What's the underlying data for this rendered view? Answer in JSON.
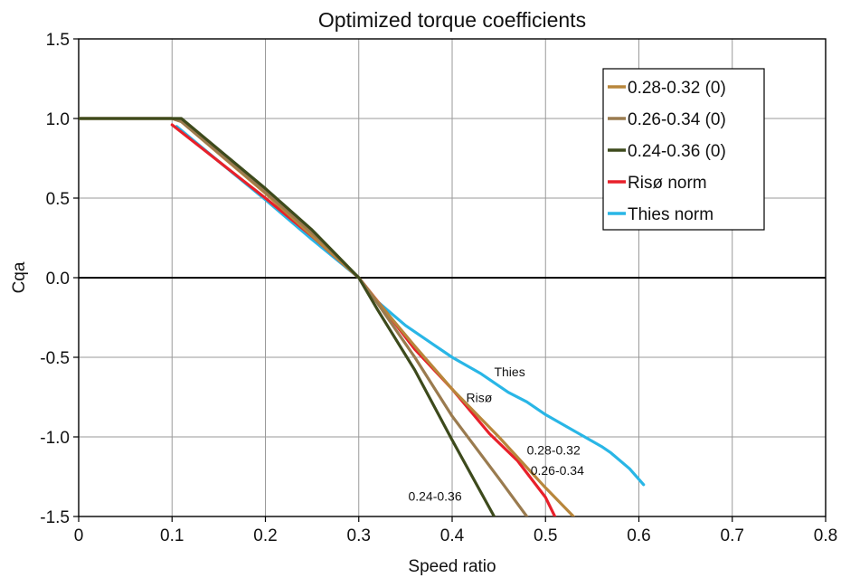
{
  "chart_data": {
    "type": "line",
    "title": "Optimized torque coefficients",
    "xlabel": "Speed ratio",
    "ylabel": "Cqa",
    "xlim": [
      0,
      0.8
    ],
    "ylim": [
      -1.5,
      1.5
    ],
    "xticks": [
      0,
      0.1,
      0.2,
      0.3,
      0.4,
      0.5,
      0.6,
      0.7,
      0.8
    ],
    "xtick_labels": [
      "0",
      "0.1",
      "0.2",
      "0.3",
      "0.4",
      "0.5",
      "0.6",
      "0.7",
      "0.8"
    ],
    "yticks": [
      1.5,
      1.0,
      0.5,
      0.0,
      -0.5,
      -1.0,
      -1.5
    ],
    "ytick_labels": [
      "1.5",
      "1.0",
      "0.5",
      "0.0",
      "-0.5",
      "-1.0",
      "-1.5"
    ],
    "grid": true,
    "legend_position": "top-right",
    "series": [
      {
        "name": "0.28-0.32 (0)",
        "color": "#B8863B",
        "x": [
          0,
          0.1,
          0.11,
          0.2,
          0.26,
          0.3,
          0.32,
          0.36,
          0.4,
          0.45,
          0.5,
          0.53
        ],
        "y": [
          1.0,
          1.0,
          0.98,
          0.53,
          0.21,
          0.0,
          -0.15,
          -0.43,
          -0.7,
          -1.0,
          -1.32,
          -1.5
        ]
      },
      {
        "name": "0.26-0.34 (0)",
        "color": "#9A7B4F",
        "x": [
          0,
          0.1,
          0.11,
          0.2,
          0.26,
          0.3,
          0.32,
          0.36,
          0.4,
          0.45,
          0.48
        ],
        "y": [
          1.0,
          1.0,
          0.98,
          0.54,
          0.23,
          0.0,
          -0.16,
          -0.5,
          -0.87,
          -1.26,
          -1.5
        ]
      },
      {
        "name": "0.24-0.36 (0)",
        "color": "#3D4A1C",
        "x": [
          0,
          0.1,
          0.11,
          0.2,
          0.25,
          0.3,
          0.32,
          0.36,
          0.4,
          0.445
        ],
        "y": [
          1.0,
          1.0,
          1.0,
          0.56,
          0.3,
          0.0,
          -0.2,
          -0.58,
          -1.02,
          -1.5
        ]
      },
      {
        "name": "Risø norm",
        "color": "#E8202A",
        "x": [
          0.1,
          0.15,
          0.2,
          0.25,
          0.3,
          0.33,
          0.36,
          0.4,
          0.44,
          0.47,
          0.5,
          0.51
        ],
        "y": [
          0.96,
          0.73,
          0.5,
          0.26,
          0.0,
          -0.22,
          -0.45,
          -0.7,
          -0.98,
          -1.15,
          -1.38,
          -1.5
        ]
      },
      {
        "name": "Thies norm",
        "color": "#29B6E6",
        "x": [
          0.105,
          0.15,
          0.2,
          0.25,
          0.3,
          0.32,
          0.35,
          0.38,
          0.4,
          0.43,
          0.46,
          0.48,
          0.5,
          0.53,
          0.56,
          0.57,
          0.59,
          0.605
        ],
        "y": [
          0.95,
          0.73,
          0.49,
          0.24,
          0.0,
          -0.15,
          -0.3,
          -0.42,
          -0.5,
          -0.6,
          -0.72,
          -0.78,
          -0.86,
          -0.96,
          -1.06,
          -1.1,
          -1.2,
          -1.3
        ]
      }
    ],
    "annotations": [
      {
        "text": "Thies",
        "x": 0.445,
        "y": -0.62
      },
      {
        "text": "Risø",
        "x": 0.415,
        "y": -0.78
      },
      {
        "text": "0.28-0.32",
        "x": 0.48,
        "y": -1.11
      },
      {
        "text": "0.26-0.34",
        "x": 0.484,
        "y": -1.24
      },
      {
        "text": "0.24-0.36",
        "x": 0.353,
        "y": -1.4
      }
    ]
  }
}
